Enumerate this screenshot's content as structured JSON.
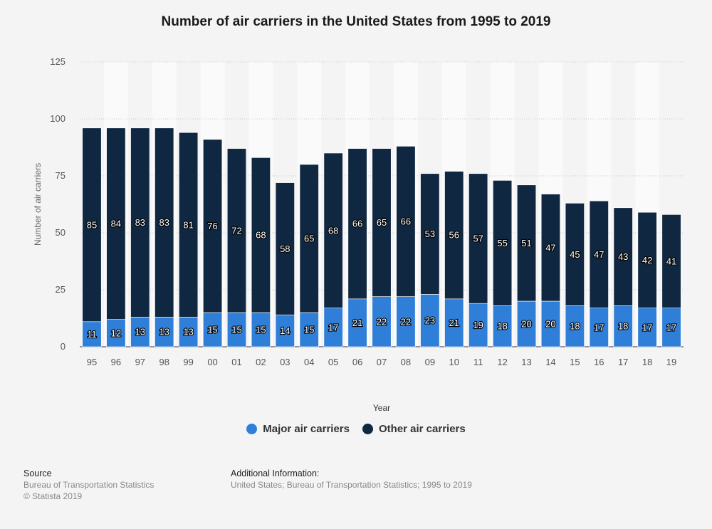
{
  "chart_data": {
    "type": "bar",
    "stacked": true,
    "title": "Number of air carriers in the United States from 1995 to 2019",
    "xlabel": "Year",
    "ylabel": "Number of air carriers",
    "ylim": [
      0,
      125
    ],
    "yticks": [
      0,
      25,
      50,
      75,
      100,
      125
    ],
    "grid": true,
    "legend_position": "bottom",
    "categories": [
      "95",
      "96",
      "97",
      "98",
      "99",
      "00",
      "01",
      "02",
      "03",
      "04",
      "05",
      "06",
      "07",
      "08",
      "09",
      "10",
      "11",
      "12",
      "13",
      "14",
      "15",
      "16",
      "17",
      "18",
      "19"
    ],
    "series": [
      {
        "name": "Major air carriers",
        "color": "#2f7ed8",
        "values": [
          11,
          12,
          13,
          13,
          13,
          15,
          15,
          15,
          14,
          15,
          17,
          21,
          22,
          22,
          23,
          21,
          19,
          18,
          20,
          20,
          18,
          17,
          18,
          17,
          17
        ]
      },
      {
        "name": "Other air carriers",
        "color": "#0f2740",
        "values": [
          85,
          84,
          83,
          83,
          81,
          76,
          72,
          68,
          58,
          65,
          68,
          66,
          65,
          66,
          53,
          56,
          57,
          55,
          51,
          47,
          45,
          47,
          43,
          42,
          41
        ]
      }
    ]
  },
  "footer": {
    "source_heading": "Source",
    "source_line1": "Bureau of Transportation Statistics",
    "source_line2": "© Statista 2019",
    "info_heading": "Additional Information:",
    "info_line1": "United States; Bureau of Transportation Statistics; 1995 to 2019"
  }
}
